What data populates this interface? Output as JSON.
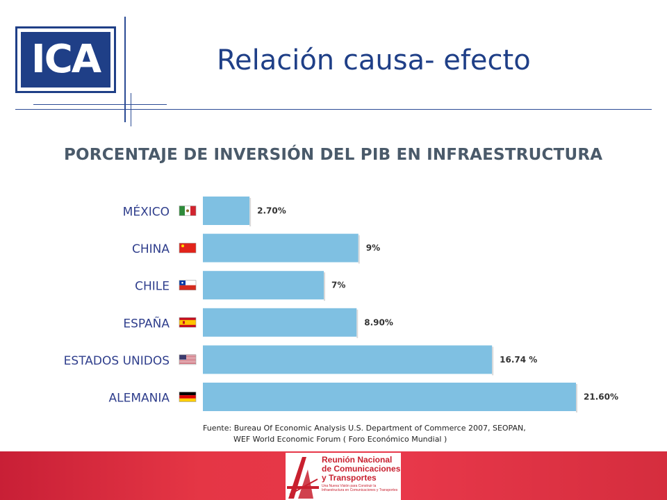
{
  "logo": {
    "text": "ICA"
  },
  "header": {
    "title": "Relación causa- efecto"
  },
  "chart_data": {
    "type": "bar",
    "orientation": "horizontal",
    "title": "PORCENTAJE DE INVERSIÓN DEL PIB EN INFRAESTRUCTURA",
    "categories": [
      "MÉXICO",
      "CHINA",
      "CHILE",
      "ESPAÑA",
      "ESTADOS UNIDOS",
      "ALEMANIA"
    ],
    "values": [
      2.7,
      9,
      7,
      8.9,
      16.74,
      21.6
    ],
    "value_labels": [
      "2.70%",
      "9%",
      "7%",
      "8.90%",
      "16.74 %",
      "21.60%"
    ],
    "bar_color": "#7fc0e2",
    "xlim": [
      0,
      21.6
    ],
    "grid": false,
    "flags": [
      "mexico-flag-icon",
      "china-flag-icon",
      "chile-flag-icon",
      "spain-flag-icon",
      "usa-flag-icon",
      "germany-flag-icon"
    ]
  },
  "source": {
    "line1": "Fuente: Bureau Of Economic Analysis U.S. Department of Commerce 2007, SEOPAN,",
    "line2": "WEF World Economic Forum ( Foro Económico Mundial )"
  },
  "footer": {
    "badge_line1": "Reunión Nacional",
    "badge_line2": "de Comunicaciones",
    "badge_line3": "y Transportes",
    "badge_sub1": "Una Nueva Visión para Construir la",
    "badge_sub2": "Infraestructura en Comunicaciones y Transportes",
    "accent": "#e5364a"
  }
}
